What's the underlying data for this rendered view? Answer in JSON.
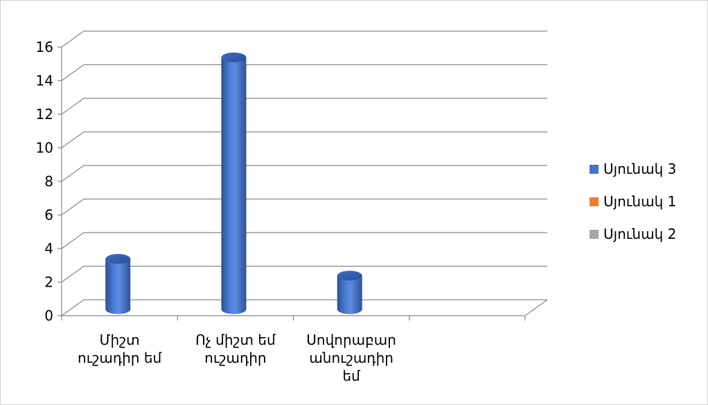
{
  "chart_data": {
    "type": "bar",
    "categories": [
      [
        "Միշտ",
        "ուշադիր եմ"
      ],
      [
        "Ոչ միշտ եմ",
        "ուշադիր"
      ],
      [
        "Սովորաբար",
        "անուշադիր",
        "եմ"
      ],
      [
        ""
      ]
    ],
    "series": [
      {
        "name": "Սյունակ 3",
        "values": [
          3,
          15,
          2,
          null
        ],
        "color": "#4472c4"
      },
      {
        "name": "Սյունակ 1",
        "values": [
          null,
          null,
          null,
          null
        ],
        "color": "#ed7d31"
      },
      {
        "name": "Սյունակ 2",
        "values": [
          null,
          null,
          null,
          null
        ],
        "color": "#a5a5a5"
      }
    ],
    "ylim": [
      0,
      16
    ],
    "yticks": [
      0,
      2,
      4,
      6,
      8,
      10,
      12,
      14,
      16
    ],
    "grid": true,
    "legend": "right",
    "style": "3d-cylinder"
  }
}
